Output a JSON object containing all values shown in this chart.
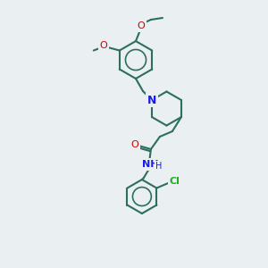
{
  "background_color": "#eaeff2",
  "bond_color": "#2d6e5e",
  "atom_colors": {
    "O": "#cc0000",
    "N": "#1a1aee",
    "Cl": "#22aa22",
    "C": "#2d6e5e",
    "H": "#2d6e5e"
  },
  "figsize": [
    3.0,
    3.0
  ],
  "dpi": 100,
  "lw": 1.5,
  "ring_lw": 1.2
}
